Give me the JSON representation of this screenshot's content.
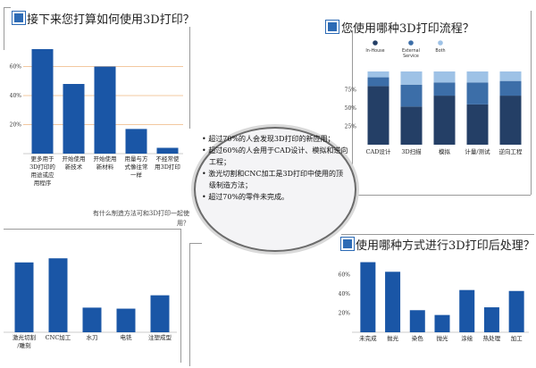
{
  "center": {
    "findings": [
      "超过70%的人会发现3D打印的新应用；",
      "超过60%的人会用于CAD设计、模拟和逆向工程；",
      "激光切割和CNC加工是3D打印中使用的顶级制造方法；",
      "超过70%的零件未完成。"
    ]
  },
  "aside_question": "有什么制造方法可和3D打印一起使用？",
  "colors": {
    "primary": "#1a56a6",
    "dark": "#243f66",
    "mid": "#3c6ea8",
    "light": "#9ec2e6",
    "grid": "#f3c8a0",
    "frame": "#9a9a9a"
  },
  "chart_data": [
    {
      "id": "plan",
      "type": "bar",
      "title": "接下来您打算如何使用3D打印？",
      "categories": [
        "更多用于3D打印的用途或应用程序",
        "开始使用新技术",
        "开始使用新材料",
        "用量与方式像往常一样",
        "不经常使用3D打印"
      ],
      "category_lines": [
        [
          "更多用于",
          "3D打印的",
          "用途或应",
          "用程序"
        ],
        [
          "开始使用",
          "新技术"
        ],
        [
          "开始使用",
          "新材料"
        ],
        [
          "用量与方",
          "式像往常",
          "一样"
        ],
        [
          "不经常使",
          "用3D打印"
        ]
      ],
      "values": [
        72,
        48,
        60,
        17,
        4
      ],
      "yticks": [
        20,
        40,
        60
      ],
      "tick_format": "%",
      "ylim": [
        0,
        80
      ],
      "grid": true
    },
    {
      "id": "workflow",
      "type": "bar",
      "stacked": true,
      "title": "您使用哪种3D打印流程？",
      "categories": [
        "CAD设计",
        "3D扫描",
        "模拟",
        "计量/测试",
        "逆向工程"
      ],
      "series": [
        {
          "name": "In-House",
          "values": [
            80,
            52,
            67,
            55,
            67
          ]
        },
        {
          "name": "External Service",
          "values": [
            12,
            30,
            18,
            30,
            20
          ]
        },
        {
          "name": "Both",
          "values": [
            8,
            18,
            15,
            15,
            13
          ]
        }
      ],
      "legend_position": "top",
      "yticks": [
        25,
        50,
        75
      ],
      "tick_format": "%",
      "ylim": [
        0,
        100
      ],
      "grid": false
    },
    {
      "id": "methods",
      "type": "bar",
      "title": "",
      "categories": [
        "激光切割/雕刻",
        "CNC加工",
        "水刀",
        "电铣",
        "注塑成型"
      ],
      "category_lines": [
        [
          "激光切割",
          "/雕刻"
        ],
        [
          "CNC加工"
        ],
        [
          "水刀"
        ],
        [
          "电铣"
        ],
        [
          "注塑成型"
        ]
      ],
      "values": [
        68,
        72,
        24,
        23,
        36
      ],
      "ylim": [
        0,
        80
      ],
      "grid": false
    },
    {
      "id": "post",
      "type": "bar",
      "title": "使用哪种方式进行3D打印后处理？",
      "categories": [
        "未完成",
        "抛光",
        "染色",
        "抛光",
        "涂绘",
        "热处理",
        "加工"
      ],
      "values": [
        73,
        63,
        23,
        18,
        44,
        26,
        43
      ],
      "yticks": [
        20,
        40,
        60
      ],
      "tick_format": "%",
      "ylim": [
        0,
        80
      ],
      "grid": false
    }
  ]
}
